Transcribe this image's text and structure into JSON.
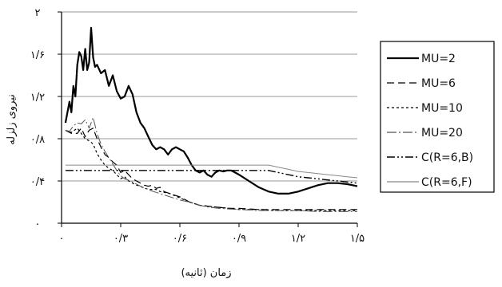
{
  "chart_data": {
    "type": "line",
    "title": "",
    "xlabel": "زمان (ثانیه)",
    "ylabel": "نیروی زلزله",
    "xlim": [
      0,
      1.5
    ],
    "ylim": [
      0,
      2
    ],
    "x_ticks": [
      {
        "value": 0,
        "label": "۰"
      },
      {
        "value": 0.3,
        "label": "۰/۳"
      },
      {
        "value": 0.6,
        "label": "۰/۶"
      },
      {
        "value": 0.9,
        "label": "۰/۹"
      },
      {
        "value": 1.2,
        "label": "۱/۲"
      },
      {
        "value": 1.5,
        "label": "۱/۵"
      }
    ],
    "y_ticks": [
      {
        "value": 0,
        "label": "۰"
      },
      {
        "value": 0.4,
        "label": "۰/۴"
      },
      {
        "value": 0.8,
        "label": "۰/۸"
      },
      {
        "value": 1.2,
        "label": "۱/۲"
      },
      {
        "value": 1.6,
        "label": "۱/۶"
      },
      {
        "value": 2,
        "label": "۲"
      }
    ],
    "grid": "horizontal",
    "legend_position": "right",
    "series": [
      {
        "name": "MU=2",
        "color": "#000000",
        "width": 2.2,
        "dash": "",
        "x": [
          0.02,
          0.04,
          0.05,
          0.06,
          0.07,
          0.08,
          0.09,
          0.1,
          0.11,
          0.12,
          0.13,
          0.14,
          0.15,
          0.16,
          0.17,
          0.18,
          0.2,
          0.22,
          0.24,
          0.26,
          0.28,
          0.3,
          0.32,
          0.34,
          0.36,
          0.38,
          0.4,
          0.42,
          0.44,
          0.46,
          0.48,
          0.5,
          0.52,
          0.54,
          0.56,
          0.58,
          0.6,
          0.62,
          0.64,
          0.66,
          0.68,
          0.7,
          0.72,
          0.74,
          0.76,
          0.78,
          0.8,
          0.82,
          0.84,
          0.86,
          0.88,
          0.9,
          0.95,
          1.0,
          1.05,
          1.1,
          1.15,
          1.2,
          1.25,
          1.3,
          1.35,
          1.4,
          1.45,
          1.5
        ],
        "y": [
          0.95,
          1.15,
          1.05,
          1.3,
          1.2,
          1.5,
          1.62,
          1.58,
          1.45,
          1.65,
          1.45,
          1.52,
          1.85,
          1.57,
          1.48,
          1.5,
          1.42,
          1.45,
          1.3,
          1.4,
          1.25,
          1.18,
          1.2,
          1.3,
          1.22,
          1.05,
          0.95,
          0.9,
          0.82,
          0.74,
          0.7,
          0.72,
          0.7,
          0.65,
          0.7,
          0.72,
          0.7,
          0.68,
          0.62,
          0.55,
          0.5,
          0.48,
          0.5,
          0.46,
          0.44,
          0.48,
          0.5,
          0.49,
          0.5,
          0.5,
          0.48,
          0.46,
          0.4,
          0.34,
          0.3,
          0.28,
          0.28,
          0.3,
          0.33,
          0.36,
          0.38,
          0.38,
          0.37,
          0.35
        ]
      },
      {
        "name": "MU=6",
        "color": "#000000",
        "width": 1.2,
        "dash": "9,5",
        "x": [
          0.02,
          0.05,
          0.08,
          0.1,
          0.12,
          0.14,
          0.16,
          0.18,
          0.2,
          0.22,
          0.24,
          0.26,
          0.28,
          0.3,
          0.32,
          0.34,
          0.36,
          0.38,
          0.4,
          0.42,
          0.44,
          0.46,
          0.48,
          0.5,
          0.52,
          0.55,
          0.6,
          0.65,
          0.7,
          0.75,
          0.8,
          0.85,
          0.9,
          1.0,
          1.1,
          1.2,
          1.3,
          1.4,
          1.5
        ],
        "y": [
          0.88,
          0.85,
          0.85,
          0.9,
          0.82,
          0.88,
          0.9,
          0.8,
          0.72,
          0.65,
          0.62,
          0.58,
          0.55,
          0.48,
          0.5,
          0.46,
          0.42,
          0.4,
          0.38,
          0.36,
          0.35,
          0.36,
          0.33,
          0.34,
          0.3,
          0.28,
          0.25,
          0.2,
          0.17,
          0.16,
          0.15,
          0.14,
          0.14,
          0.13,
          0.13,
          0.13,
          0.13,
          0.13,
          0.13
        ]
      },
      {
        "name": "MU=10",
        "color": "#000000",
        "width": 1.2,
        "dash": "3,3",
        "x": [
          0.02,
          0.05,
          0.08,
          0.1,
          0.12,
          0.14,
          0.16,
          0.18,
          0.2,
          0.22,
          0.24,
          0.26,
          0.28,
          0.3,
          0.32,
          0.34,
          0.36,
          0.38,
          0.4,
          0.42,
          0.45,
          0.48,
          0.5,
          0.55,
          0.6,
          0.65,
          0.7,
          0.75,
          0.8,
          0.85,
          0.9,
          1.0,
          1.1,
          1.2,
          1.3,
          1.4,
          1.5
        ],
        "y": [
          0.88,
          0.86,
          0.9,
          0.85,
          0.8,
          0.78,
          0.75,
          0.66,
          0.6,
          0.55,
          0.52,
          0.5,
          0.46,
          0.42,
          0.44,
          0.4,
          0.38,
          0.36,
          0.35,
          0.33,
          0.32,
          0.32,
          0.3,
          0.28,
          0.24,
          0.2,
          0.17,
          0.16,
          0.15,
          0.14,
          0.13,
          0.13,
          0.12,
          0.12,
          0.12,
          0.12,
          0.12
        ]
      },
      {
        "name": "MU=20",
        "color": "#555555",
        "width": 1.0,
        "dash": "12,3,2,3",
        "x": [
          0.02,
          0.04,
          0.06,
          0.08,
          0.1,
          0.12,
          0.14,
          0.16,
          0.18,
          0.2,
          0.22,
          0.24,
          0.26,
          0.28,
          0.3,
          0.32,
          0.35,
          0.38,
          0.4,
          0.45,
          0.5,
          0.55,
          0.6,
          0.65,
          0.7,
          0.75,
          0.8,
          0.9,
          1.0,
          1.1,
          1.2,
          1.3,
          1.4,
          1.5
        ],
        "y": [
          0.88,
          0.87,
          0.92,
          0.95,
          0.94,
          0.98,
          0.9,
          1.0,
          0.85,
          0.75,
          0.68,
          0.62,
          0.56,
          0.5,
          0.45,
          0.42,
          0.4,
          0.37,
          0.35,
          0.31,
          0.28,
          0.25,
          0.22,
          0.2,
          0.17,
          0.15,
          0.14,
          0.13,
          0.12,
          0.12,
          0.12,
          0.11,
          0.11,
          0.11
        ]
      },
      {
        "name": "C(R=6,B)",
        "color": "#000000",
        "width": 1.4,
        "dash": "10,3,2,3,2,3",
        "x": [
          0.02,
          0.1,
          0.2,
          0.3,
          0.4,
          0.5,
          0.6,
          0.7,
          0.8,
          0.9,
          0.95,
          1.0,
          1.05,
          1.1,
          1.15,
          1.2,
          1.25,
          1.3,
          1.35,
          1.4,
          1.45,
          1.5
        ],
        "y": [
          0.5,
          0.5,
          0.5,
          0.5,
          0.5,
          0.5,
          0.5,
          0.5,
          0.5,
          0.5,
          0.5,
          0.5,
          0.5,
          0.48,
          0.46,
          0.44,
          0.43,
          0.42,
          0.41,
          0.4,
          0.39,
          0.38
        ]
      },
      {
        "name": "C(R=6,F)",
        "color": "#888888",
        "width": 1.0,
        "dash": "",
        "x": [
          0.02,
          0.1,
          0.2,
          0.3,
          0.4,
          0.5,
          0.6,
          0.7,
          0.8,
          0.9,
          0.95,
          1.0,
          1.05,
          1.1,
          1.15,
          1.2,
          1.25,
          1.3,
          1.35,
          1.4,
          1.45,
          1.5
        ],
        "y": [
          0.55,
          0.55,
          0.55,
          0.55,
          0.55,
          0.55,
          0.55,
          0.55,
          0.55,
          0.55,
          0.55,
          0.55,
          0.55,
          0.53,
          0.51,
          0.49,
          0.48,
          0.47,
          0.46,
          0.45,
          0.44,
          0.43
        ]
      }
    ]
  }
}
